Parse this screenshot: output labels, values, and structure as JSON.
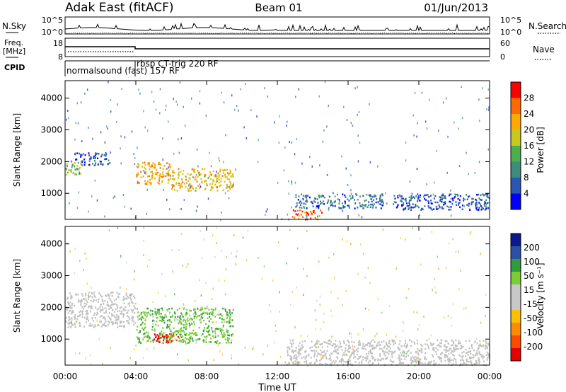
{
  "header": {
    "station": "Adak East (fitACF)",
    "beam": "Beam 01",
    "date": "01/Jun/2013"
  },
  "side_labels": {
    "nsky": "N.Sky",
    "freq_line1": "Freq.",
    "freq_line2": "[MHz]",
    "cpid": "CPID",
    "nsearch": "N.Search",
    "nave": "Nave"
  },
  "noise_panel": {
    "left_ticks": [
      "10^5",
      "10^0"
    ],
    "right_ticks": [
      "10^5",
      "10^0"
    ]
  },
  "freq_panel": {
    "left_ticks": [
      "18",
      "8"
    ],
    "right_ticks": [
      "60",
      "0"
    ]
  },
  "cpid_panel": {
    "programs": [
      {
        "start": 0,
        "end": 4,
        "label": "normalsound (fast) 157 RF"
      },
      {
        "start": 4,
        "end": 24,
        "label": "rbsp CT-trig 220 RF"
      }
    ]
  },
  "colors": {
    "power_scale": [
      "#0000ff",
      "#2a57b4",
      "#3e8c7a",
      "#4bb04b",
      "#c8c81e",
      "#ffaa00",
      "#ff6a00",
      "#ff0000"
    ],
    "velocity_scale": [
      "#e60000",
      "#ff4b00",
      "#ff8c00",
      "#ffc000",
      "#c8c8c8",
      "#c8c8c8",
      "#7acd32",
      "#2e9e3c",
      "#2a50a8",
      "#0a1a8c"
    ],
    "ground_scatter": "#c0c0c0"
  },
  "power_colorbar": {
    "title": "Power [dB]",
    "ticks": [
      "28",
      "24",
      "20",
      "16",
      "12",
      "8",
      "4"
    ]
  },
  "velocity_colorbar": {
    "title": "Velocity [m s⁻¹]",
    "ticks": [
      "200",
      "100",
      "50",
      "15",
      "-15",
      "-50",
      "-100",
      "-200"
    ]
  },
  "x_axis": {
    "title": "Time UT",
    "ticks": [
      "00:00",
      "04:00",
      "08:00",
      "12:00",
      "16:00",
      "20:00",
      "00:00"
    ]
  },
  "chart_data": [
    {
      "type": "heatmap",
      "title": "",
      "xlabel": "Time UT",
      "ylabel": "Slant Range [km]",
      "xlim": [
        0,
        24
      ],
      "ylim": [
        180,
        4550
      ],
      "y_ticks": [
        1000,
        2000,
        3000,
        4000
      ],
      "x_ticks": [
        0,
        4,
        8,
        12,
        16,
        20,
        24
      ],
      "colorbar": {
        "label": "Power [dB]",
        "range": [
          0,
          32
        ],
        "ticks": [
          4,
          8,
          12,
          16,
          20,
          24,
          28
        ]
      },
      "features": [
        {
          "t_start": 0.0,
          "t_end": 1.0,
          "r_start": 1600,
          "r_end": 2000,
          "power_db": 16
        },
        {
          "t_start": 0.5,
          "t_end": 2.5,
          "r_start": 1900,
          "r_end": 2300,
          "power_db": 6
        },
        {
          "t_start": 4.0,
          "t_end": 6.0,
          "r_start": 1300,
          "r_end": 2000,
          "power_db": 22
        },
        {
          "t_start": 6.0,
          "t_end": 9.5,
          "r_start": 1100,
          "r_end": 1800,
          "power_db": 20
        },
        {
          "t_start": 12.8,
          "t_end": 14.5,
          "r_start": 200,
          "r_end": 500,
          "power_db": 26
        },
        {
          "t_start": 13.0,
          "t_end": 18.0,
          "r_start": 550,
          "r_end": 1000,
          "power_db": 8
        },
        {
          "t_start": 18.5,
          "t_end": 24.0,
          "r_start": 500,
          "r_end": 1000,
          "power_db": 6
        }
      ]
    },
    {
      "type": "heatmap",
      "title": "",
      "xlabel": "Time UT",
      "ylabel": "Slant Range [km]",
      "xlim": [
        0,
        24
      ],
      "ylim": [
        180,
        4550
      ],
      "y_ticks": [
        1000,
        2000,
        3000,
        4000
      ],
      "x_ticks": [
        0,
        4,
        8,
        12,
        16,
        20,
        24
      ],
      "colorbar": {
        "label": "Velocity [m s⁻¹]",
        "ticks": [
          200,
          100,
          50,
          15,
          -15,
          -50,
          -100,
          -200
        ]
      },
      "features": [
        {
          "t_start": 0.0,
          "t_end": 4.0,
          "r_start": 1400,
          "r_end": 2500,
          "velocity": 0,
          "ground_scatter": true
        },
        {
          "t_start": 4.0,
          "t_end": 9.5,
          "r_start": 900,
          "r_end": 2000,
          "velocity": 40
        },
        {
          "t_start": 5.0,
          "t_end": 6.5,
          "r_start": 900,
          "r_end": 1200,
          "velocity": -200
        },
        {
          "t_start": 12.5,
          "t_end": 24.0,
          "r_start": 200,
          "r_end": 1000,
          "velocity": 0,
          "ground_scatter": true
        }
      ]
    }
  ]
}
